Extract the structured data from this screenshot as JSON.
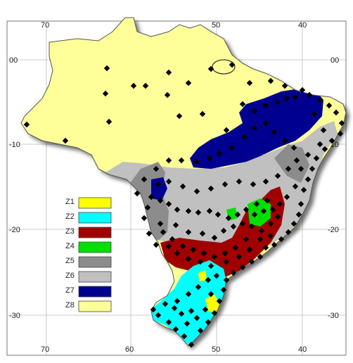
{
  "axes": {
    "top_longitudes": [
      "70",
      "50",
      "40"
    ],
    "bottom_longitudes": [
      "70",
      "60",
      "50",
      "40"
    ],
    "left_latitudes": [
      "00",
      "-10",
      "-20",
      "-30"
    ],
    "right_latitudes": [
      "00",
      "-10",
      "-20",
      "-30"
    ]
  },
  "legend": [
    {
      "label": "Z1",
      "color": "#ffff00"
    },
    {
      "label": "Z2",
      "color": "#00ffff"
    },
    {
      "label": "Z3",
      "color": "#a00000"
    },
    {
      "label": "Z4",
      "color": "#00e000"
    },
    {
      "label": "Z5",
      "color": "#8c8c8c"
    },
    {
      "label": "Z6",
      "color": "#c0c0c0"
    },
    {
      "label": "Z7",
      "color": "#000090"
    },
    {
      "label": "Z8",
      "color": "#ffff99"
    }
  ],
  "colors": {
    "z8_fill": "#ffff99",
    "z7_fill": "#000090",
    "z6_fill": "#c0c0c0",
    "z5_fill": "#8c8c8c",
    "z3_fill": "#a00000",
    "z2_fill": "#00ffff",
    "z1_fill": "#ffff00",
    "z4_fill": "#00e000",
    "station_marker": "#000000",
    "grid_line": "#bbbbbb"
  }
}
